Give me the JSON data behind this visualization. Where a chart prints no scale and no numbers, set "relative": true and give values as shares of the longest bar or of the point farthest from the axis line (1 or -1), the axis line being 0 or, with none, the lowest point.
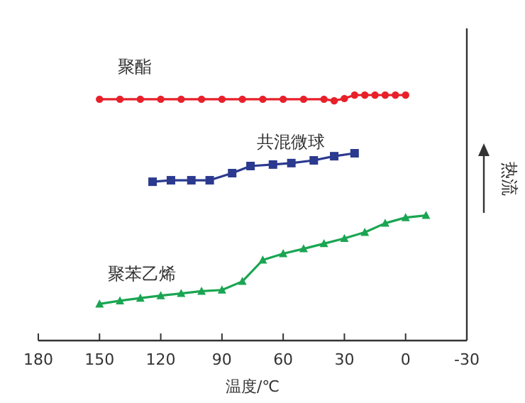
{
  "chart_data": {
    "type": "line",
    "relative": true,
    "xlabel": "温度/℃",
    "ylabel": "热流",
    "xlim": [
      180,
      -30
    ],
    "xticks": [
      180,
      150,
      120,
      90,
      60,
      30,
      0,
      -30
    ],
    "series": [
      {
        "name": "聚酯",
        "color": "#e8202a",
        "marker": "circle",
        "x": [
          150,
          140,
          130,
          120,
          110,
          100,
          90,
          80,
          70,
          60,
          50,
          40,
          35,
          30,
          25,
          20,
          15,
          10,
          5,
          0
        ],
        "values": [
          0.983,
          0.983,
          0.983,
          0.983,
          0.983,
          0.983,
          0.983,
          0.983,
          0.983,
          0.983,
          0.983,
          0.983,
          0.977,
          0.986,
          1,
          1,
          1,
          1,
          1,
          1
        ]
      },
      {
        "name": "共混微球",
        "color": "#2b3a8f",
        "marker": "square",
        "x": [
          124,
          115,
          105,
          96,
          85,
          76,
          65,
          56,
          45,
          35,
          25
        ],
        "values": [
          0.647,
          0.653,
          0.653,
          0.653,
          0.682,
          0.711,
          0.717,
          0.723,
          0.734,
          0.751,
          0.763
        ]
      },
      {
        "name": "聚苯乙烯",
        "color": "#1aa552",
        "marker": "triangle",
        "x": [
          150,
          140,
          130,
          120,
          110,
          100,
          90,
          80,
          70,
          60,
          50,
          40,
          30,
          20,
          10,
          0,
          -10
        ],
        "values": [
          0.149,
          0.162,
          0.173,
          0.183,
          0.192,
          0.201,
          0.206,
          0.241,
          0.328,
          0.354,
          0.374,
          0.395,
          0.416,
          0.441,
          0.478,
          0.501,
          0.51
        ]
      }
    ]
  }
}
